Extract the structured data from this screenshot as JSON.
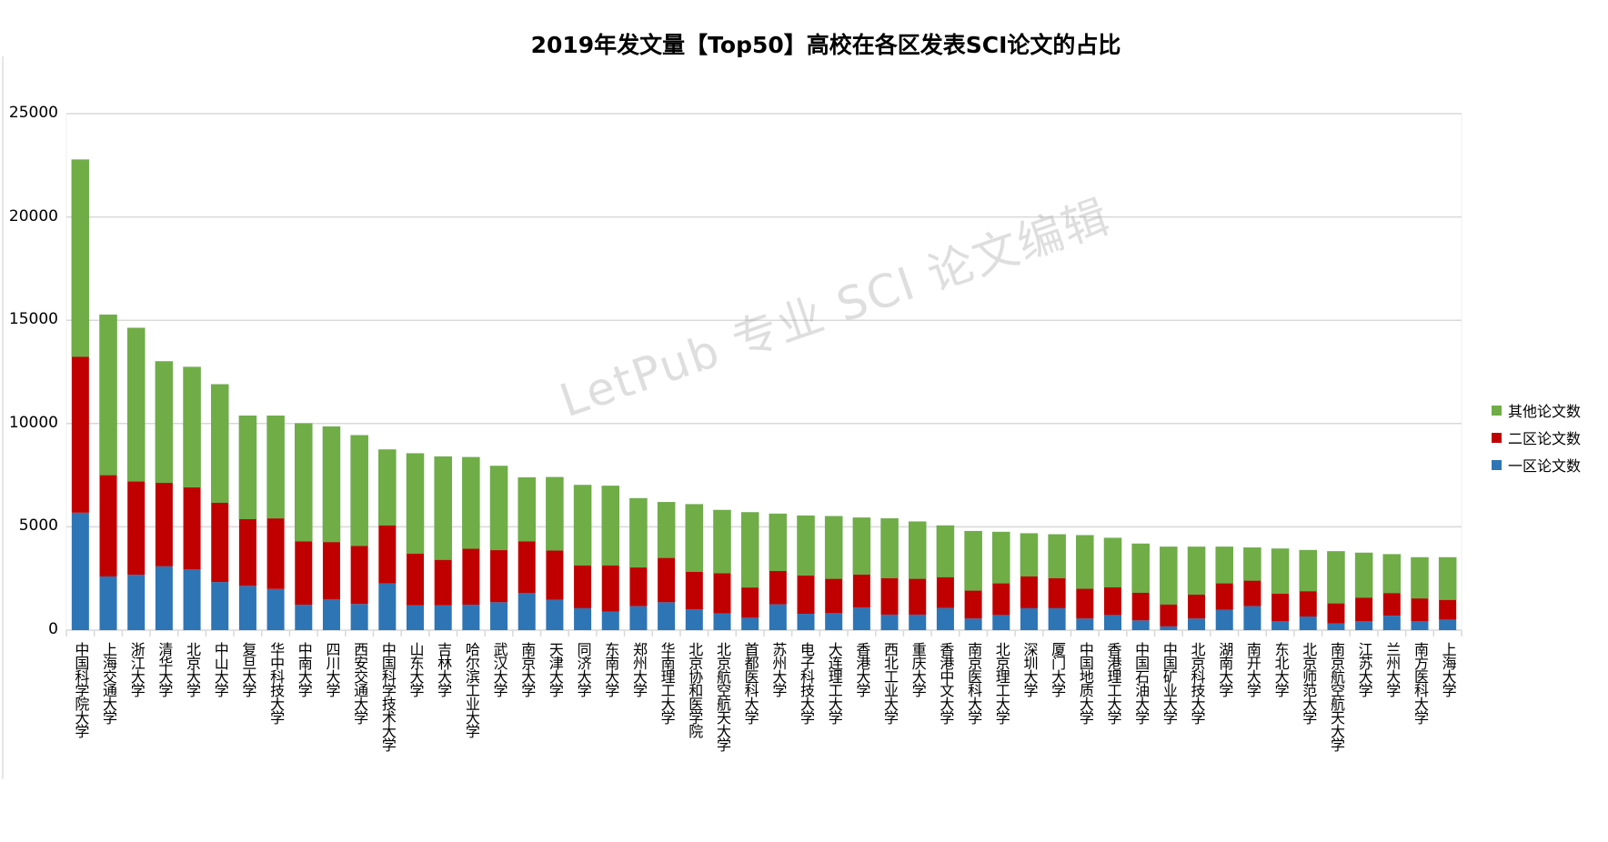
{
  "chart_data": {
    "type": "bar",
    "stacked": true,
    "title": "2019年发文量【Top50】高校在各区发表SCI论文的占比",
    "xlabel": "",
    "ylabel": "",
    "ylim": [
      0,
      25000
    ],
    "yticks": [
      0,
      5000,
      10000,
      15000,
      20000,
      25000
    ],
    "grid": true,
    "legend_position": "right",
    "categories": [
      "中国科学院大学",
      "上海交通大学",
      "浙江大学",
      "清华大学",
      "北京大学",
      "中山大学",
      "复旦大学",
      "华中科技大学",
      "中南大学",
      "四川大学",
      "西安交通大学",
      "中国科学技术大学",
      "山东大学",
      "吉林大学",
      "哈尔滨工业大学",
      "武汉大学",
      "南京大学",
      "天津大学",
      "同济大学",
      "东南大学",
      "郑州大学",
      "华南理工大学",
      "北京协和医学院",
      "北京航空航天大学",
      "首都医科大学",
      "苏州大学",
      "电子科技大学",
      "大连理工大学",
      "香港大学",
      "西北工业大学",
      "重庆大学",
      "香港中文大学",
      "南京医科大学",
      "北京理工大学",
      "深圳大学",
      "厦门大学",
      "中国地质大学",
      "香港理工大学",
      "中国石油大学",
      "中国矿业大学",
      "北京科技大学",
      "湖南大学",
      "南开大学",
      "东北大学",
      "北京师范大学",
      "南京航空航天大学",
      "江苏大学",
      "兰州大学",
      "南方医科大学",
      "上海大学"
    ],
    "series": [
      {
        "name": "一区论文数",
        "color": "#2e75b6",
        "values": [
          5685,
          2598,
          2682,
          3087,
          2935,
          2328,
          2142,
          1991,
          1231,
          1484,
          1265,
          2260,
          1198,
          1198,
          1231,
          1350,
          1805,
          1470,
          1060,
          890,
          1160,
          1350,
          1010,
          810,
          600,
          1250,
          790,
          820,
          1090,
          750,
          750,
          1070,
          560,
          730,
          1060,
          1060,
          560,
          730,
          470,
          180,
          560,
          980,
          1160,
          440,
          660,
          320,
          440,
          700,
          440,
          510
        ]
      },
      {
        "name": "二区论文数",
        "color": "#c00000",
        "values": [
          7557,
          4909,
          4521,
          4049,
          3981,
          3846,
          3239,
          3424,
          3071,
          2784,
          2817,
          2818,
          2513,
          2210,
          2716,
          2530,
          2497,
          2390,
          2080,
          2250,
          1880,
          2150,
          1820,
          1950,
          1470,
          1620,
          1860,
          1670,
          1610,
          1770,
          1740,
          1500,
          1360,
          1540,
          1550,
          1460,
          1450,
          1350,
          1350,
          1070,
          1170,
          1290,
          1240,
          1330,
          1230,
          980,
          1140,
          1100,
          1100,
          960
        ]
      },
      {
        "name": "其他论文数",
        "color": "#70ad47",
        "values": [
          9531,
          7759,
          7423,
          5870,
          5820,
          5719,
          4993,
          4959,
          5701,
          5584,
          5348,
          3660,
          4841,
          4993,
          4420,
          4065,
          3087,
          3540,
          3880,
          3840,
          3340,
          2690,
          3260,
          3050,
          3630,
          2760,
          2890,
          3020,
          2740,
          2880,
          2760,
          2490,
          2870,
          2480,
          2070,
          2110,
          2580,
          2380,
          2360,
          2780,
          2300,
          1760,
          1590,
          2170,
          1980,
          2510,
          2160,
          1870,
          1980,
          2050
        ]
      }
    ],
    "legend": [
      "其他论文数",
      "二区论文数",
      "一区论文数"
    ],
    "tick_labels": [
      "0",
      "5000",
      "10000",
      "15000",
      "20000",
      "25000"
    ]
  },
  "watermark": "LetPub 专业 SCI 论文编辑"
}
